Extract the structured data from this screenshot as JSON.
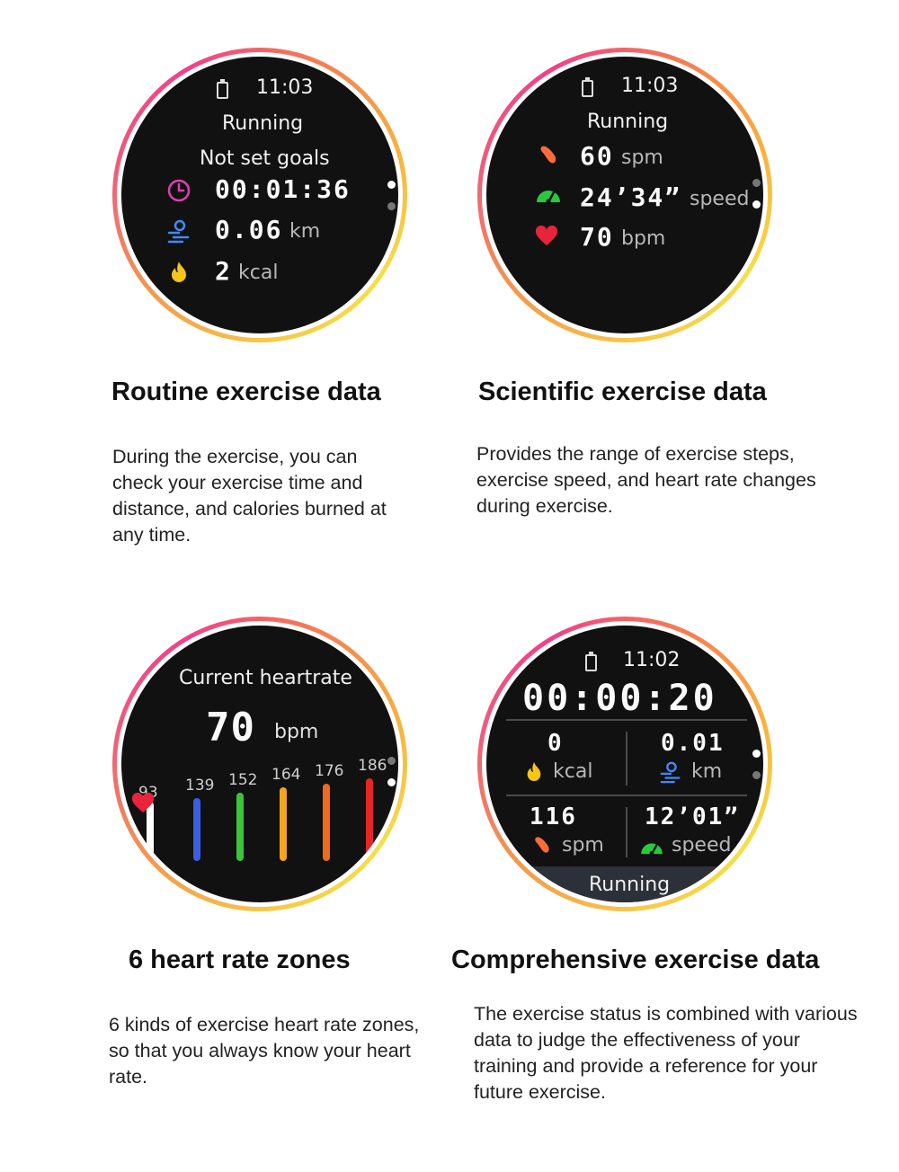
{
  "colors": {
    "clock_icon": "#e040b0",
    "distance_icon": "#3d8bff",
    "fire_icon": "#f5c518",
    "cadence_icon": "#ff6a3d",
    "speed_icon": "#28c840",
    "heart_icon": "#e8233a",
    "zones": [
      "#ffffff",
      "#3a5fe0",
      "#3cc43a",
      "#f2a51f",
      "#f06a1a",
      "#e32626"
    ]
  },
  "panel1": {
    "time": "11:03",
    "activity": "Running",
    "goal": "Not set goals",
    "duration": "00:01:36",
    "distance_value": "0.06",
    "distance_unit": "km",
    "calories_value": "2",
    "calories_unit": "kcal",
    "heading": "Routine exercise data",
    "description": "During the exercise, you can check your exercise time and distance, and calories burned at any time."
  },
  "panel2": {
    "time": "11:03",
    "activity": "Running",
    "cadence_value": "60",
    "cadence_unit": "spm",
    "pace_value": "24’34”",
    "pace_unit": "speed",
    "heart_value": "70",
    "heart_unit": "bpm",
    "heading": "Scientific exercise data",
    "description": "Provides the range of exercise steps, exercise speed, and heart rate changes during exercise."
  },
  "panel3": {
    "title": "Current heartrate",
    "heart_value": "70",
    "heart_unit": "bpm",
    "zones": [
      "93",
      "139",
      "152",
      "164",
      "176",
      "186"
    ],
    "heading": "6 heart rate zones",
    "description": "6 kinds of exercise heart rate zones, so that you always know your heart rate."
  },
  "panel4": {
    "time": "11:02",
    "duration": "00:00:20",
    "calories_value": "0",
    "calories_unit": "kcal",
    "distance_value": "0.01",
    "distance_unit": "km",
    "cadence_value": "116",
    "cadence_unit": "spm",
    "pace_value": "12’01”",
    "pace_unit": "speed",
    "activity": "Running",
    "heading": "Comprehensive exercise data",
    "description": "The exercise status is combined with various data to judge the effectiveness of your training and provide a reference for your future exercise."
  }
}
